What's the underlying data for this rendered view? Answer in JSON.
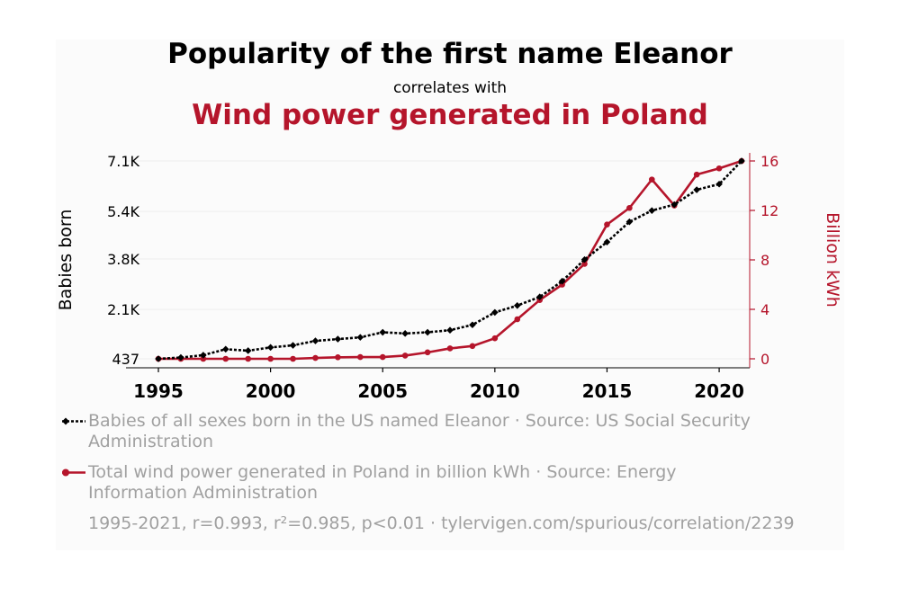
{
  "colors": {
    "series1": "#000000",
    "series2": "#b5152b",
    "muted": "#a0a0a0",
    "grid": "#eeeeee"
  },
  "header": {
    "title": "Popularity of the first name Eleanor",
    "connector": "correlates with",
    "second_title": "Wind power generated in Poland"
  },
  "legend": {
    "series1_text": "Babies of all sexes born in the US named Eleanor · Source: US Social Security Administration",
    "series2_text": "Total wind power generated in Poland in billion kWh · Source: Energy Information Administration"
  },
  "footer": {
    "stats": "1995-2021, r=0.993, r²=0.985, p<0.01 · tylervigen.com/spurious/correlation/2239"
  },
  "chart_data": {
    "type": "line",
    "x": [
      1995,
      1996,
      1997,
      1998,
      1999,
      2000,
      2001,
      2002,
      2003,
      2004,
      2005,
      2006,
      2007,
      2008,
      2009,
      2010,
      2011,
      2012,
      2013,
      2014,
      2015,
      2016,
      2017,
      2018,
      2019,
      2020,
      2021
    ],
    "xticks": [
      "1995",
      "2000",
      "2005",
      "2010",
      "2015",
      "2020"
    ],
    "xlim": [
      1995,
      2021
    ],
    "series": [
      {
        "name": "Babies of all sexes born in the US named Eleanor",
        "axis": "left",
        "marker": "diamond",
        "style": "dotted",
        "values": [
          437,
          480,
          560,
          760,
          710,
          820,
          890,
          1040,
          1100,
          1160,
          1330,
          1290,
          1330,
          1400,
          1580,
          2000,
          2230,
          2520,
          3050,
          3780,
          4370,
          5050,
          5430,
          5630,
          6130,
          6320,
          7100
        ]
      },
      {
        "name": "Total wind power generated in Poland in billion kWh",
        "axis": "right",
        "marker": "circle",
        "style": "solid",
        "values": [
          0.0,
          0.0,
          0.0,
          0.0,
          0.0,
          0.0,
          0.0,
          0.07,
          0.12,
          0.14,
          0.14,
          0.26,
          0.52,
          0.84,
          1.03,
          1.66,
          3.2,
          4.75,
          6.0,
          7.68,
          10.86,
          12.2,
          14.5,
          12.4,
          14.9,
          15.4,
          16.0
        ]
      }
    ],
    "left_axis": {
      "label": "Babies born",
      "ticks": [
        437,
        2100,
        3800,
        5400,
        7100
      ],
      "tick_labels": [
        "437",
        "2.1K",
        "3.8K",
        "5.4K",
        "7.1K"
      ],
      "ylim": [
        437,
        7100
      ]
    },
    "right_axis": {
      "label": "Billion kWh",
      "ticks": [
        0,
        4,
        8,
        12,
        16
      ],
      "tick_labels": [
        "0",
        "4",
        "8",
        "12",
        "16"
      ],
      "ylim": [
        0,
        16
      ]
    },
    "grid": true
  }
}
